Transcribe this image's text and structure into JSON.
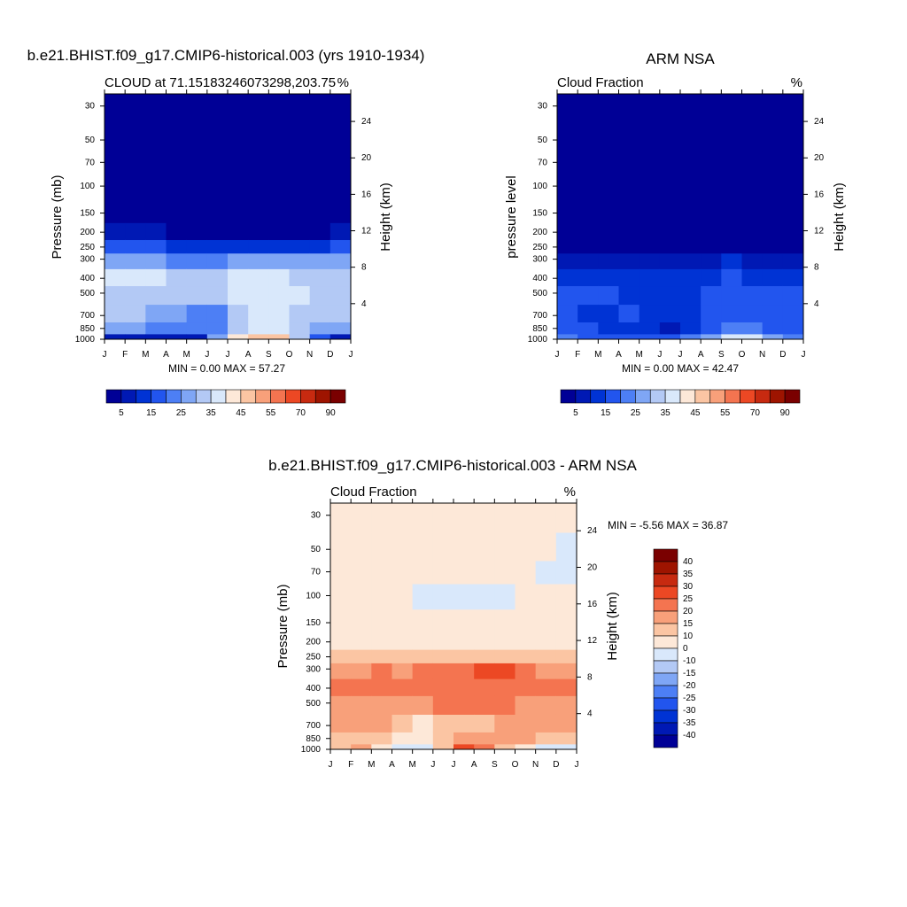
{
  "colors": {
    "panel_palette": [
      "#000096",
      "#0019b4",
      "#0033d4",
      "#2255ee",
      "#4d7ff5",
      "#7fa6f5",
      "#b3c9f5",
      "#d9e8fb",
      "#fde8d8",
      "#fbc5a3",
      "#f8a07a",
      "#f47450",
      "#ec4824",
      "#c72a10",
      "#9e1400",
      "#7a0000"
    ],
    "diff_palette": [
      "#000096",
      "#0019b4",
      "#0033d4",
      "#2255ee",
      "#4d7ff5",
      "#7fa6f5",
      "#b3c9f5",
      "#d9e8fb",
      "#fde8d8",
      "#fbc5a3",
      "#f8a07a",
      "#f47450",
      "#ec4824",
      "#c72a10",
      "#9e1400",
      "#7a0000"
    ]
  },
  "panels": {
    "model": {
      "title": "b.e21.BHIST.f09_g17.CMIP6-historical.003 (yrs 1910-1934)",
      "left_label": "CLOUD at 71.15183246073298,203.75",
      "right_label": "%",
      "ylabel": "Pressure (mb)",
      "ylabel2": "Height (km)",
      "stats": "MIN =   0.00 MAX =  57.27"
    },
    "obs": {
      "title": "ARM NSA",
      "left_label": "Cloud Fraction",
      "right_label": "%",
      "ylabel": "pressure level",
      "ylabel2": "Height (km)",
      "stats": "MIN =   0.00 MAX =  42.47"
    },
    "diff": {
      "title": "b.e21.BHIST.f09_g17.CMIP6-historical.003 - ARM NSA",
      "left_label": "Cloud Fraction",
      "right_label": "%",
      "ylabel": "Pressure (mb)",
      "ylabel2": "Height (km)",
      "stats": "MIN =  -5.56 MAX =  36.87"
    }
  },
  "chart_data": [
    {
      "type": "heatmap",
      "title": "b.e21.BHIST.f09_g17.CMIP6-historical.003 (yrs 1910-1934)",
      "xlabel": "",
      "ylabel": "Pressure (mb)",
      "ylabel_right": "Height (km)",
      "x_ticks": [
        "J",
        "F",
        "M",
        "A",
        "M",
        "J",
        "J",
        "A",
        "S",
        "O",
        "N",
        "D",
        "J"
      ],
      "y_ticks": [
        30,
        50,
        70,
        100,
        150,
        200,
        250,
        300,
        400,
        500,
        700,
        850,
        1000
      ],
      "y_right_ticks": [
        4,
        8,
        12,
        16,
        20,
        24
      ],
      "ylim": [
        1000,
        25
      ],
      "colorbar_ticks": [
        5,
        15,
        25,
        35,
        45,
        55,
        70,
        90
      ],
      "units": "%",
      "levels": [
        1000,
        850,
        700,
        500,
        400,
        300,
        250,
        200,
        150,
        100,
        70,
        50,
        30
      ],
      "values_by_month": [
        [
          5,
          25,
          30,
          30,
          35,
          25,
          15,
          5,
          2,
          0,
          0,
          0,
          0
        ],
        [
          5,
          25,
          30,
          30,
          35,
          25,
          15,
          5,
          2,
          0,
          0,
          0,
          0
        ],
        [
          5,
          25,
          30,
          30,
          35,
          25,
          15,
          5,
          2,
          0,
          0,
          0,
          0
        ],
        [
          5,
          22,
          28,
          32,
          35,
          25,
          15,
          5,
          2,
          0,
          0,
          0,
          0
        ],
        [
          5,
          20,
          22,
          30,
          30,
          22,
          12,
          4,
          1,
          0,
          0,
          0,
          0
        ],
        [
          10,
          20,
          18,
          30,
          32,
          22,
          12,
          4,
          1,
          0,
          0,
          0,
          0
        ],
        [
          40,
          28,
          30,
          35,
          35,
          25,
          12,
          4,
          1,
          0,
          0,
          0,
          0
        ],
        [
          45,
          32,
          35,
          38,
          36,
          25,
          12,
          4,
          1,
          0,
          0,
          0,
          0
        ],
        [
          50,
          40,
          36,
          40,
          42,
          28,
          12,
          4,
          1,
          0,
          0,
          0,
          0
        ],
        [
          45,
          38,
          36,
          38,
          36,
          25,
          12,
          4,
          1,
          0,
          0,
          0,
          0
        ],
        [
          20,
          30,
          30,
          32,
          32,
          25,
          12,
          4,
          1,
          0,
          0,
          0,
          0
        ],
        [
          10,
          28,
          30,
          30,
          32,
          25,
          15,
          5,
          2,
          0,
          0,
          0,
          0
        ],
        [
          5,
          25,
          30,
          30,
          35,
          25,
          15,
          5,
          2,
          0,
          0,
          0,
          0
        ]
      ],
      "min": 0.0,
      "max": 57.27
    },
    {
      "type": "heatmap",
      "title": "ARM NSA",
      "xlabel": "",
      "ylabel": "pressure level",
      "ylabel_right": "Height (km)",
      "x_ticks": [
        "J",
        "F",
        "M",
        "A",
        "M",
        "J",
        "J",
        "A",
        "S",
        "O",
        "N",
        "D",
        "J"
      ],
      "y_ticks": [
        30,
        50,
        70,
        100,
        150,
        200,
        250,
        300,
        400,
        500,
        700,
        850,
        1000
      ],
      "y_right_ticks": [
        4,
        8,
        12,
        16,
        20,
        24
      ],
      "ylim": [
        1000,
        25
      ],
      "colorbar_ticks": [
        5,
        15,
        25,
        35,
        45,
        55,
        70,
        90
      ],
      "units": "%",
      "levels": [
        1000,
        850,
        700,
        500,
        400,
        300,
        250,
        200,
        150,
        100,
        70,
        50,
        30
      ],
      "values_by_month": [
        [
          20,
          15,
          15,
          15,
          12,
          8,
          2,
          0,
          0,
          0,
          0,
          0,
          0
        ],
        [
          20,
          15,
          15,
          15,
          12,
          8,
          2,
          0,
          0,
          0,
          0,
          0,
          0
        ],
        [
          18,
          15,
          12,
          15,
          12,
          6,
          2,
          0,
          0,
          0,
          0,
          0,
          0
        ],
        [
          18,
          12,
          15,
          15,
          12,
          6,
          2,
          0,
          0,
          0,
          0,
          0,
          0
        ],
        [
          18,
          15,
          15,
          12,
          12,
          5,
          1,
          0,
          0,
          0,
          0,
          0,
          0
        ],
        [
          15,
          5,
          12,
          12,
          10,
          5,
          1,
          0,
          0,
          0,
          0,
          0,
          0
        ],
        [
          18,
          12,
          12,
          12,
          10,
          6,
          1,
          0,
          0,
          0,
          0,
          0,
          0
        ],
        [
          25,
          15,
          15,
          15,
          12,
          8,
          2,
          0,
          0,
          0,
          0,
          0,
          0
        ],
        [
          30,
          18,
          18,
          18,
          15,
          10,
          2,
          0,
          0,
          0,
          0,
          0,
          0
        ],
        [
          42,
          22,
          18,
          20,
          15,
          10,
          2,
          0,
          0,
          0,
          0,
          0,
          0
        ],
        [
          30,
          18,
          15,
          15,
          12,
          8,
          2,
          0,
          0,
          0,
          0,
          0,
          0
        ],
        [
          20,
          15,
          15,
          15,
          12,
          8,
          2,
          0,
          0,
          0,
          0,
          0,
          0
        ],
        [
          20,
          15,
          15,
          15,
          12,
          8,
          2,
          0,
          0,
          0,
          0,
          0,
          0
        ]
      ],
      "min": 0.0,
      "max": 42.47
    },
    {
      "type": "heatmap",
      "title": "b.e21.BHIST.f09_g17.CMIP6-historical.003 - ARM NSA",
      "xlabel": "",
      "ylabel": "Pressure (mb)",
      "ylabel_right": "Height (km)",
      "x_ticks": [
        "J",
        "F",
        "M",
        "A",
        "M",
        "J",
        "J",
        "A",
        "S",
        "O",
        "N",
        "D",
        "J"
      ],
      "y_ticks": [
        30,
        50,
        70,
        100,
        150,
        200,
        250,
        300,
        400,
        500,
        700,
        850,
        1000
      ],
      "y_right_ticks": [
        4,
        8,
        12,
        16,
        20,
        24
      ],
      "ylim": [
        1000,
        25
      ],
      "colorbar_ticks": [
        40,
        35,
        30,
        25,
        20,
        15,
        10,
        0,
        -10,
        -15,
        -20,
        -25,
        -30,
        -35,
        -40
      ],
      "units": "%",
      "levels": [
        1000,
        850,
        700,
        500,
        400,
        300,
        250,
        200,
        150,
        100,
        70,
        50,
        30
      ],
      "values_by_month": [
        [
          -5,
          12,
          15,
          15,
          22,
          18,
          12,
          5,
          2,
          1,
          1,
          1,
          1
        ],
        [
          25,
          12,
          15,
          15,
          22,
          18,
          12,
          5,
          2,
          1,
          1,
          1,
          1
        ],
        [
          12,
          15,
          18,
          15,
          26,
          20,
          12,
          5,
          2,
          1,
          1,
          1,
          1
        ],
        [
          -5,
          12,
          12,
          15,
          22,
          20,
          12,
          5,
          2,
          1,
          1,
          1,
          1
        ],
        [
          -5,
          5,
          8,
          15,
          18,
          18,
          12,
          5,
          2,
          -1,
          1,
          1,
          1
        ],
        [
          -5,
          8,
          10,
          18,
          22,
          22,
          12,
          5,
          2,
          -1,
          1,
          1,
          1
        ],
        [
          28,
          15,
          18,
          22,
          25,
          22,
          12,
          5,
          2,
          -1,
          1,
          1,
          1
        ],
        [
          22,
          18,
          8,
          22,
          22,
          18,
          12,
          5,
          2,
          -1,
          -1,
          1,
          1
        ],
        [
          18,
          20,
          16,
          20,
          26,
          32,
          12,
          5,
          2,
          -1,
          1,
          1,
          1
        ],
        [
          8,
          18,
          15,
          20,
          22,
          22,
          12,
          5,
          2,
          -1,
          1,
          1,
          1
        ],
        [
          -5,
          12,
          15,
          15,
          18,
          18,
          12,
          5,
          2,
          1,
          -1,
          1,
          1
        ],
        [
          -5,
          12,
          15,
          15,
          22,
          20,
          12,
          5,
          2,
          1,
          -1,
          -1,
          1
        ],
        [
          -5,
          12,
          15,
          15,
          22,
          18,
          12,
          5,
          2,
          1,
          -1,
          -1,
          1
        ]
      ],
      "min": -5.56,
      "max": 36.87
    }
  ]
}
